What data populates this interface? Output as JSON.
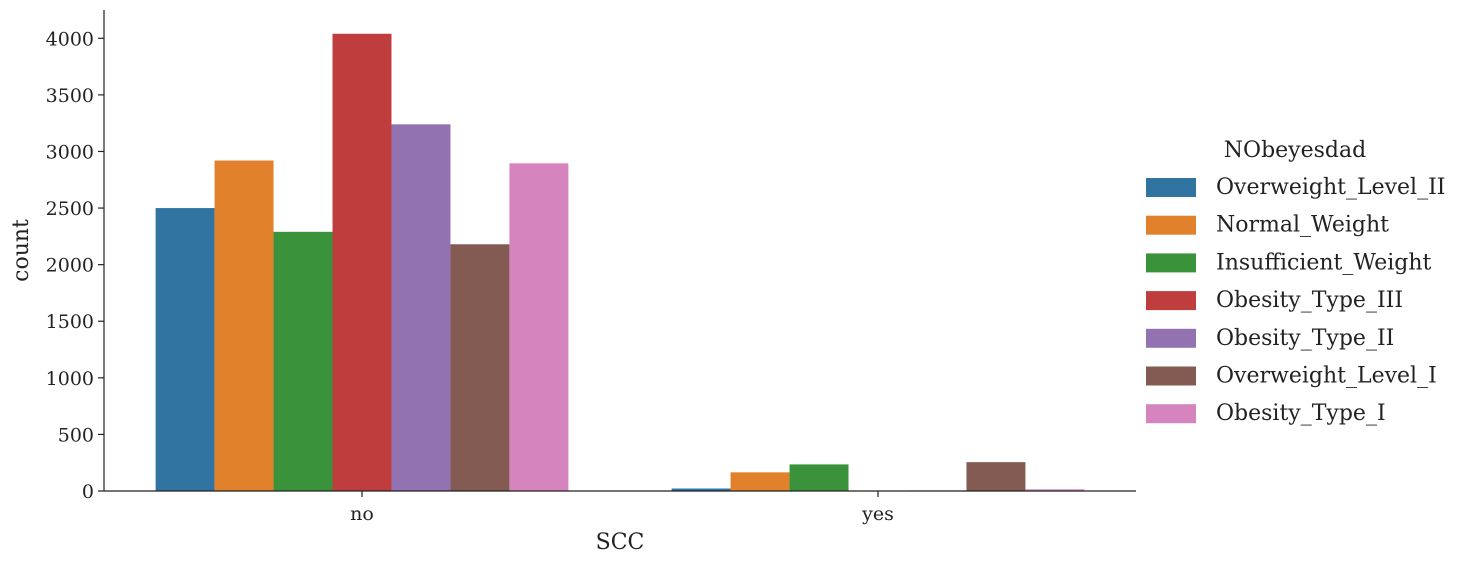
{
  "chart_data": {
    "type": "bar",
    "xlabel": "SCC",
    "ylabel": "count",
    "ylim": [
      0,
      4250
    ],
    "yticks": [
      0,
      500,
      1000,
      1500,
      2000,
      2500,
      3000,
      3500,
      4000
    ],
    "categories": [
      "no",
      "yes"
    ],
    "legend": {
      "title": "NObeyesdad",
      "placement": "right-outside"
    },
    "grid": false,
    "series": [
      {
        "name": "Overweight_Level_II",
        "color": "#3274a1",
        "values": [
          2500,
          22
        ]
      },
      {
        "name": "Normal_Weight",
        "color": "#e1812c",
        "values": [
          2920,
          165
        ]
      },
      {
        "name": "Insufficient_Weight",
        "color": "#3a923a",
        "values": [
          2290,
          235
        ]
      },
      {
        "name": "Obesity_Type_III",
        "color": "#c03d3e",
        "values": [
          4040,
          2
        ]
      },
      {
        "name": "Obesity_Type_II",
        "color": "#9372b2",
        "values": [
          3240,
          5
        ]
      },
      {
        "name": "Overweight_Level_I",
        "color": "#845b53",
        "values": [
          2180,
          255
        ]
      },
      {
        "name": "Obesity_Type_I",
        "color": "#d684bd",
        "values": [
          2895,
          15
        ]
      }
    ]
  }
}
